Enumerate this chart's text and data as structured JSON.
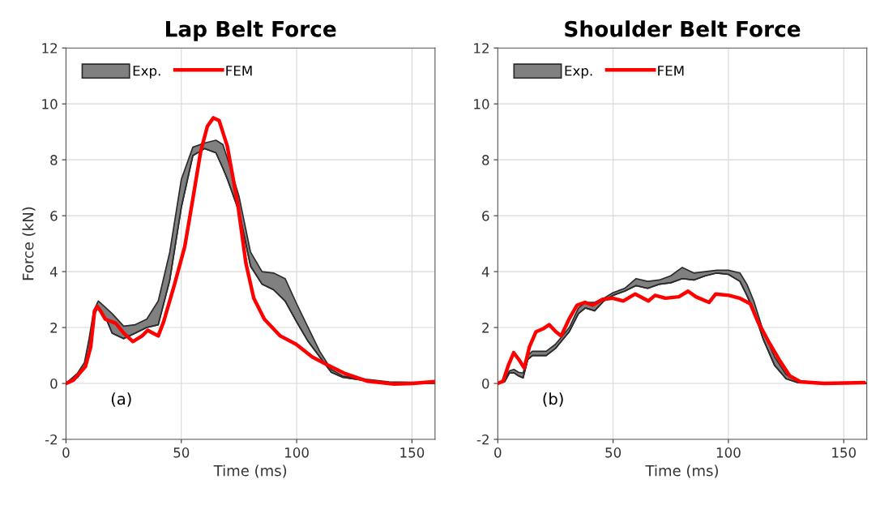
{
  "chart_data": [
    {
      "type": "line",
      "title": "Lap Belt Force",
      "xlabel": "Time (ms)",
      "ylabel": "Force (kN)",
      "annotations": [
        "(a)"
      ],
      "xlim": [
        0,
        160
      ],
      "ylim": [
        -2,
        12
      ],
      "xticks": [
        0,
        50,
        100,
        150
      ],
      "yticks": [
        -2,
        0,
        2,
        4,
        6,
        8,
        10,
        12
      ],
      "grid": true,
      "legend": "top left",
      "series": [
        {
          "name": "Exp.",
          "color": "#2b2b2b",
          "x": [
            0,
            5,
            8,
            10,
            12,
            14,
            16,
            18,
            20,
            25,
            30,
            35,
            40,
            45,
            50,
            55,
            60,
            65,
            68,
            70,
            75,
            80,
            85,
            90,
            95,
            100,
            105,
            110,
            115,
            120,
            130,
            140,
            160
          ],
          "values": [
            0,
            0.22,
            0.55,
            1.2,
            2.4,
            2.75,
            2.5,
            2.2,
            1.8,
            1.6,
            1.8,
            2.0,
            2.1,
            3.7,
            6.3,
            8.15,
            8.4,
            8.25,
            7.7,
            7.3,
            6.15,
            4.2,
            3.55,
            3.35,
            2.95,
            2.2,
            1.5,
            0.95,
            0.4,
            0.22,
            0.1,
            0.03,
            0
          ],
          "lower": [
            0,
            0.22,
            0.55,
            1.2,
            2.4,
            2.75,
            2.5,
            2.2,
            1.8,
            1.6,
            1.8,
            2.0,
            2.1,
            3.7,
            6.3,
            8.15,
            8.4,
            8.25,
            7.7,
            7.3,
            6.15,
            4.2,
            3.55,
            3.35,
            2.95,
            2.2,
            1.5,
            0.95,
            0.4,
            0.22,
            0.1,
            0.03,
            0
          ],
          "upper": [
            0,
            0.37,
            0.75,
            1.6,
            2.6,
            2.95,
            2.8,
            2.65,
            2.5,
            2.05,
            2.1,
            2.3,
            2.95,
            4.7,
            7.3,
            8.45,
            8.6,
            8.7,
            8.55,
            8.05,
            6.7,
            4.7,
            4.0,
            3.95,
            3.75,
            2.85,
            2.0,
            1.15,
            0.5,
            0.27,
            0.15,
            0.06,
            0.02
          ]
        },
        {
          "name": "FEM",
          "color": "#ff0000",
          "x": [
            0,
            3.2,
            8.4,
            10.7,
            12.4,
            13.6,
            15.3,
            17,
            21.6,
            25,
            29,
            33,
            35.4,
            37.7,
            40,
            42.3,
            46.9,
            51.5,
            55,
            58.4,
            61.3,
            63.9,
            66.4,
            69.9,
            74.5,
            78,
            81.4,
            86,
            92.9,
            99.8,
            106.7,
            113.6,
            120.5,
            130.8,
            142.3,
            150.3,
            159.5
          ],
          "values": [
            0,
            0.12,
            0.6,
            1.3,
            2.6,
            2.75,
            2.55,
            2.3,
            2.15,
            1.8,
            1.5,
            1.7,
            1.9,
            1.8,
            1.7,
            2.2,
            3.5,
            4.9,
            6.6,
            8.3,
            9.2,
            9.5,
            9.4,
            8.5,
            6.4,
            4.3,
            3.05,
            2.3,
            1.7,
            1.4,
            0.95,
            0.65,
            0.37,
            0.08,
            -0.02,
            0,
            0.06
          ]
        }
      ]
    },
    {
      "type": "line",
      "title": "Shoulder Belt Force",
      "xlabel": "Time (ms)",
      "annotations": [
        "(b)"
      ],
      "xlim": [
        0,
        160
      ],
      "ylim": [
        -2,
        12
      ],
      "xticks": [
        0,
        50,
        100,
        150
      ],
      "yticks": [
        -2,
        0,
        2,
        4,
        6,
        8,
        10,
        12
      ],
      "grid": true,
      "legend": "top left",
      "series": [
        {
          "name": "Exp.",
          "color": "#2b2b2b",
          "x": [
            0,
            3,
            5,
            7,
            9,
            11,
            13,
            15,
            18,
            21,
            25,
            28,
            31,
            35,
            38,
            42,
            46,
            50,
            55,
            60,
            65,
            70,
            75,
            80,
            85,
            90,
            95,
            100,
            105,
            108,
            111,
            115,
            120,
            125,
            130,
            140,
            160
          ],
          "values": [
            0,
            0.06,
            0.37,
            0.38,
            0.27,
            0.2,
            0.85,
            1.0,
            1.0,
            1.0,
            1.25,
            1.55,
            1.85,
            2.5,
            2.7,
            2.6,
            2.95,
            3.15,
            3.3,
            3.5,
            3.4,
            3.55,
            3.6,
            3.75,
            3.7,
            3.85,
            3.95,
            3.9,
            3.65,
            3.15,
            2.6,
            1.6,
            0.65,
            0.17,
            0.03,
            0,
            0
          ],
          "lower": [
            0,
            0.06,
            0.37,
            0.38,
            0.27,
            0.2,
            0.85,
            1.0,
            1.0,
            1.0,
            1.25,
            1.55,
            1.85,
            2.5,
            2.7,
            2.6,
            2.95,
            3.15,
            3.3,
            3.5,
            3.4,
            3.55,
            3.6,
            3.75,
            3.7,
            3.85,
            3.95,
            3.9,
            3.65,
            3.15,
            2.6,
            1.6,
            0.65,
            0.17,
            0.03,
            0,
            0
          ],
          "upper": [
            0,
            0.12,
            0.45,
            0.5,
            0.4,
            0.37,
            1.0,
            1.15,
            1.15,
            1.15,
            1.4,
            1.7,
            2.0,
            2.7,
            2.9,
            2.9,
            3.05,
            3.25,
            3.4,
            3.75,
            3.65,
            3.7,
            3.85,
            4.15,
            3.95,
            4.0,
            4.05,
            4.05,
            3.95,
            3.55,
            2.95,
            1.9,
            0.95,
            0.32,
            0.08,
            0,
            0.02
          ]
        },
        {
          "name": "FEM",
          "color": "#ff0000",
          "x": [
            0,
            2.3,
            4.6,
            6.9,
            9.2,
            11.5,
            13.7,
            16.6,
            19.5,
            22.3,
            25.2,
            27.5,
            30.9,
            34.4,
            37.8,
            41.2,
            45.2,
            49.8,
            54.4,
            59.6,
            65.3,
            68.2,
            72.7,
            78.5,
            82.5,
            85.9,
            91.6,
            94.5,
            100.2,
            104.8,
            109.5,
            112.8,
            117.4,
            122,
            126.6,
            131.2,
            141.5,
            158.7
          ],
          "values": [
            0,
            0.08,
            0.65,
            1.1,
            0.85,
            0.55,
            1.3,
            1.85,
            1.95,
            2.1,
            1.85,
            1.7,
            2.3,
            2.8,
            2.9,
            2.8,
            3.0,
            3.05,
            2.95,
            3.2,
            2.95,
            3.15,
            3.05,
            3.1,
            3.3,
            3.1,
            2.9,
            3.2,
            3.15,
            3.05,
            2.85,
            2.2,
            1.5,
            0.85,
            0.27,
            0.06,
            0,
            0.03
          ]
        }
      ]
    }
  ]
}
